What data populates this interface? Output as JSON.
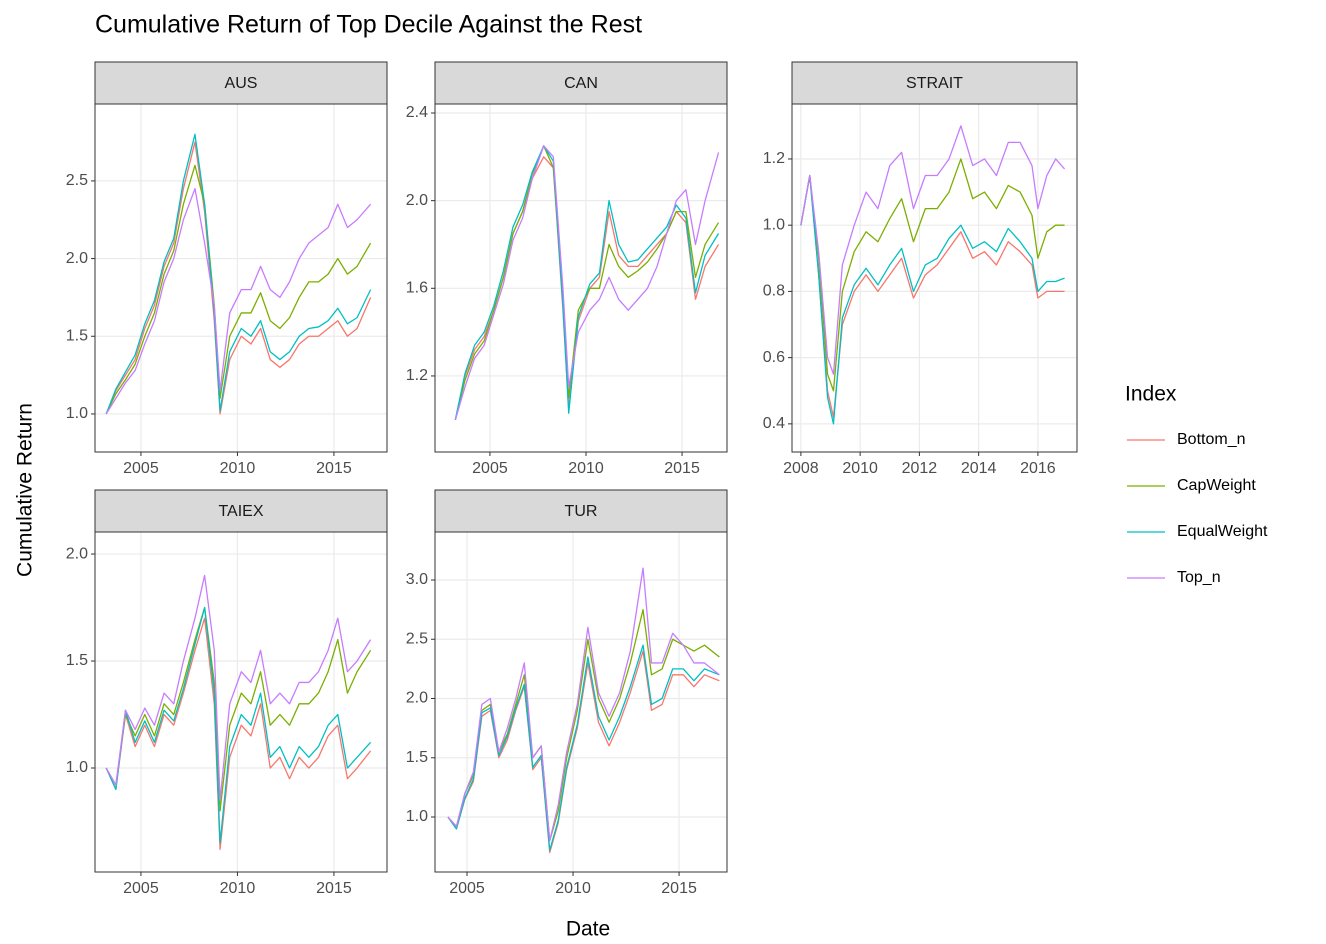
{
  "title": "Cumulative Return of Top Decile Against the Rest",
  "x_label": "Date",
  "y_label": "Cumulative Return",
  "legend_title": "Index",
  "chart_data": [
    {
      "type": "line",
      "title": "AUS",
      "grid": true,
      "xlim": [
        2002.62,
        2017.75
      ],
      "xticks": [
        2005,
        2010,
        2015
      ],
      "ylim": [
        0.755,
        2.995
      ],
      "yticks": [
        {
          "value": 1,
          "label": "1.0"
        },
        1.5,
        {
          "value": 2,
          "label": "2.0"
        },
        2.5
      ],
      "x": [
        2003.2,
        2003.7,
        2004.2,
        2004.7,
        2005.2,
        2005.7,
        2006.2,
        2006.7,
        2007.2,
        2007.8,
        2008.3,
        2008.8,
        2009.1,
        2009.6,
        2010.2,
        2010.7,
        2011.2,
        2011.7,
        2012.2,
        2012.7,
        2013.2,
        2013.7,
        2014.2,
        2014.7,
        2015.2,
        2015.7,
        2016.2,
        2016.9
      ],
      "series": [
        {
          "name": "Bottom_n",
          "color": "#F8766D",
          "values": [
            1.0,
            1.15,
            1.25,
            1.35,
            1.55,
            1.7,
            1.95,
            2.1,
            2.45,
            2.75,
            2.3,
            1.6,
            1.0,
            1.35,
            1.5,
            1.45,
            1.55,
            1.35,
            1.3,
            1.35,
            1.45,
            1.5,
            1.5,
            1.55,
            1.6,
            1.5,
            1.55,
            1.75
          ]
        },
        {
          "name": "CapWeight",
          "color": "#7CAE00",
          "values": [
            1.0,
            1.13,
            1.22,
            1.32,
            1.5,
            1.65,
            1.9,
            2.05,
            2.35,
            2.6,
            2.35,
            1.7,
            1.1,
            1.5,
            1.65,
            1.65,
            1.78,
            1.6,
            1.55,
            1.62,
            1.75,
            1.85,
            1.85,
            1.9,
            2.0,
            1.9,
            1.95,
            2.1
          ]
        },
        {
          "name": "EqualWeight",
          "color": "#00BFC4",
          "values": [
            1.0,
            1.16,
            1.27,
            1.38,
            1.58,
            1.73,
            1.98,
            2.13,
            2.5,
            2.8,
            2.35,
            1.65,
            1.02,
            1.4,
            1.55,
            1.5,
            1.6,
            1.4,
            1.35,
            1.4,
            1.5,
            1.55,
            1.56,
            1.6,
            1.68,
            1.58,
            1.62,
            1.8
          ]
        },
        {
          "name": "Top_n",
          "color": "#C77CFF",
          "values": [
            1.0,
            1.1,
            1.2,
            1.28,
            1.45,
            1.6,
            1.85,
            2.0,
            2.25,
            2.45,
            2.1,
            1.7,
            1.15,
            1.65,
            1.8,
            1.8,
            1.95,
            1.8,
            1.75,
            1.85,
            2.0,
            2.1,
            2.15,
            2.2,
            2.35,
            2.2,
            2.25,
            2.35
          ]
        }
      ]
    },
    {
      "type": "line",
      "title": "CAN",
      "grid": true,
      "xlim": [
        2002.14,
        2017.34
      ],
      "xticks": [
        2005,
        2010,
        2015
      ],
      "ylim": [
        0.853,
        2.441
      ],
      "yticks": [
        1.2,
        1.6,
        {
          "value": 2,
          "label": "2.0"
        },
        2.4
      ],
      "x": [
        2003.2,
        2003.7,
        2004.2,
        2004.7,
        2005.2,
        2005.7,
        2006.2,
        2006.7,
        2007.2,
        2007.8,
        2008.3,
        2008.8,
        2009.1,
        2009.6,
        2010.2,
        2010.7,
        2011.2,
        2011.7,
        2012.2,
        2012.7,
        2013.2,
        2013.7,
        2014.2,
        2014.7,
        2015.2,
        2015.7,
        2016.2,
        2016.9
      ],
      "series": [
        {
          "name": "Bottom_n",
          "color": "#F8766D",
          "values": [
            1.0,
            1.2,
            1.32,
            1.38,
            1.5,
            1.65,
            1.85,
            1.95,
            2.1,
            2.2,
            2.15,
            1.5,
            1.05,
            1.45,
            1.6,
            1.65,
            1.95,
            1.75,
            1.7,
            1.7,
            1.75,
            1.8,
            1.85,
            1.95,
            1.9,
            1.55,
            1.7,
            1.8
          ]
        },
        {
          "name": "CapWeight",
          "color": "#7CAE00",
          "values": [
            1.0,
            1.18,
            1.3,
            1.36,
            1.5,
            1.65,
            1.85,
            1.95,
            2.12,
            2.25,
            2.15,
            1.55,
            1.1,
            1.5,
            1.6,
            1.6,
            1.8,
            1.7,
            1.65,
            1.68,
            1.72,
            1.78,
            1.85,
            1.95,
            1.95,
            1.65,
            1.8,
            1.9
          ]
        },
        {
          "name": "EqualWeight",
          "color": "#00BFC4",
          "values": [
            1.0,
            1.21,
            1.34,
            1.4,
            1.52,
            1.68,
            1.88,
            1.98,
            2.13,
            2.25,
            2.18,
            1.52,
            1.03,
            1.47,
            1.62,
            1.67,
            2.0,
            1.8,
            1.72,
            1.73,
            1.78,
            1.83,
            1.88,
            1.98,
            1.92,
            1.58,
            1.75,
            1.85
          ]
        },
        {
          "name": "Top_n",
          "color": "#C77CFF",
          "values": [
            1.0,
            1.15,
            1.28,
            1.34,
            1.48,
            1.62,
            1.82,
            1.92,
            2.1,
            2.25,
            2.2,
            1.6,
            1.15,
            1.4,
            1.5,
            1.55,
            1.65,
            1.55,
            1.5,
            1.55,
            1.6,
            1.7,
            1.85,
            2.0,
            2.05,
            1.8,
            2.0,
            2.22
          ]
        }
      ]
    },
    {
      "type": "line",
      "title": "STRAIT",
      "grid": true,
      "xlim": [
        2007.7,
        2017.32
      ],
      "xticks": [
        2008,
        2010,
        2012,
        2014,
        2016
      ],
      "ylim": [
        0.315,
        1.366
      ],
      "yticks": [
        0.4,
        0.6,
        0.8,
        {
          "value": 1,
          "label": "1.0"
        },
        1.2
      ],
      "x": [
        2008.0,
        2008.3,
        2008.6,
        2008.9,
        2009.1,
        2009.4,
        2009.8,
        2010.2,
        2010.6,
        2011.0,
        2011.4,
        2011.8,
        2012.2,
        2012.6,
        2013.0,
        2013.4,
        2013.8,
        2014.2,
        2014.6,
        2015.0,
        2015.4,
        2015.8,
        2016.0,
        2016.3,
        2016.6,
        2016.9
      ],
      "series": [
        {
          "name": "Bottom_n",
          "color": "#F8766D",
          "values": [
            1.0,
            1.15,
            0.85,
            0.5,
            0.42,
            0.7,
            0.8,
            0.85,
            0.8,
            0.85,
            0.9,
            0.78,
            0.85,
            0.88,
            0.93,
            0.98,
            0.9,
            0.92,
            0.88,
            0.95,
            0.92,
            0.88,
            0.78,
            0.8,
            0.8,
            0.8
          ]
        },
        {
          "name": "CapWeight",
          "color": "#7CAE00",
          "values": [
            1.0,
            1.15,
            0.9,
            0.55,
            0.5,
            0.8,
            0.92,
            0.98,
            0.95,
            1.02,
            1.08,
            0.95,
            1.05,
            1.05,
            1.1,
            1.2,
            1.08,
            1.1,
            1.05,
            1.12,
            1.1,
            1.03,
            0.9,
            0.98,
            1.0,
            1.0
          ]
        },
        {
          "name": "EqualWeight",
          "color": "#00BFC4",
          "values": [
            1.0,
            1.15,
            0.85,
            0.48,
            0.4,
            0.72,
            0.82,
            0.87,
            0.82,
            0.88,
            0.93,
            0.8,
            0.88,
            0.9,
            0.96,
            1.0,
            0.93,
            0.95,
            0.92,
            0.99,
            0.95,
            0.9,
            0.8,
            0.83,
            0.83,
            0.84
          ]
        },
        {
          "name": "Top_n",
          "color": "#C77CFF",
          "values": [
            1.0,
            1.15,
            0.92,
            0.6,
            0.55,
            0.88,
            1.0,
            1.1,
            1.05,
            1.18,
            1.22,
            1.05,
            1.15,
            1.15,
            1.2,
            1.3,
            1.18,
            1.2,
            1.15,
            1.25,
            1.25,
            1.18,
            1.05,
            1.15,
            1.2,
            1.17
          ]
        }
      ]
    },
    {
      "type": "line",
      "title": "TAIEX",
      "grid": true,
      "xlim": [
        2002.62,
        2017.75
      ],
      "xticks": [
        2005,
        2010,
        2015
      ],
      "ylim": [
        0.514,
        2.103
      ],
      "yticks": [
        {
          "value": 1,
          "label": "1.0"
        },
        1.5,
        {
          "value": 2,
          "label": "2.0"
        }
      ],
      "x": [
        2003.2,
        2003.7,
        2004.2,
        2004.7,
        2005.2,
        2005.7,
        2006.2,
        2006.7,
        2007.2,
        2007.8,
        2008.3,
        2008.8,
        2009.1,
        2009.6,
        2010.2,
        2010.7,
        2011.2,
        2011.7,
        2012.2,
        2012.7,
        2013.2,
        2013.7,
        2014.2,
        2014.7,
        2015.2,
        2015.7,
        2016.2,
        2016.9
      ],
      "series": [
        {
          "name": "Bottom_n",
          "color": "#F8766D",
          "values": [
            1.0,
            0.9,
            1.25,
            1.1,
            1.2,
            1.1,
            1.25,
            1.2,
            1.35,
            1.55,
            1.7,
            1.3,
            0.62,
            1.05,
            1.2,
            1.15,
            1.3,
            1.0,
            1.05,
            0.95,
            1.05,
            1.0,
            1.05,
            1.15,
            1.2,
            0.95,
            1.0,
            1.08
          ]
        },
        {
          "name": "CapWeight",
          "color": "#7CAE00",
          "values": [
            1.0,
            0.92,
            1.25,
            1.15,
            1.25,
            1.15,
            1.3,
            1.25,
            1.4,
            1.6,
            1.75,
            1.4,
            0.8,
            1.2,
            1.35,
            1.3,
            1.45,
            1.2,
            1.25,
            1.2,
            1.3,
            1.3,
            1.35,
            1.45,
            1.6,
            1.35,
            1.45,
            1.55
          ]
        },
        {
          "name": "EqualWeight",
          "color": "#00BFC4",
          "values": [
            1.0,
            0.9,
            1.27,
            1.12,
            1.22,
            1.12,
            1.27,
            1.22,
            1.37,
            1.58,
            1.75,
            1.35,
            0.65,
            1.1,
            1.25,
            1.2,
            1.35,
            1.05,
            1.1,
            1.0,
            1.1,
            1.05,
            1.1,
            1.2,
            1.25,
            1.0,
            1.05,
            1.12
          ]
        },
        {
          "name": "Top_n",
          "color": "#C77CFF",
          "values": [
            1.0,
            0.92,
            1.27,
            1.18,
            1.28,
            1.2,
            1.35,
            1.3,
            1.5,
            1.7,
            1.9,
            1.55,
            0.85,
            1.3,
            1.45,
            1.4,
            1.55,
            1.3,
            1.35,
            1.3,
            1.4,
            1.4,
            1.45,
            1.55,
            1.7,
            1.45,
            1.5,
            1.6
          ]
        }
      ]
    },
    {
      "type": "line",
      "title": "TUR",
      "grid": true,
      "xlim": [
        2003.49,
        2017.26
      ],
      "xticks": [
        2005,
        2010,
        2015
      ],
      "ylim": [
        0.536,
        3.405
      ],
      "yticks": [
        {
          "value": 1,
          "label": "1.0"
        },
        1.5,
        {
          "value": 2,
          "label": "2.0"
        },
        2.5,
        {
          "value": 3,
          "label": "3.0"
        }
      ],
      "x": [
        2004.1,
        2004.5,
        2004.9,
        2005.3,
        2005.7,
        2006.1,
        2006.5,
        2006.9,
        2007.3,
        2007.7,
        2008.1,
        2008.5,
        2008.9,
        2009.3,
        2009.7,
        2010.2,
        2010.7,
        2011.2,
        2011.7,
        2012.2,
        2012.7,
        2013.3,
        2013.7,
        2014.2,
        2014.7,
        2015.2,
        2015.7,
        2016.2,
        2016.9
      ],
      "series": [
        {
          "name": "Bottom_n",
          "color": "#F8766D",
          "values": [
            1.0,
            0.9,
            1.15,
            1.3,
            1.85,
            1.9,
            1.5,
            1.65,
            1.9,
            2.1,
            1.4,
            1.5,
            0.7,
            0.95,
            1.4,
            1.75,
            2.3,
            1.8,
            1.6,
            1.8,
            2.05,
            2.4,
            1.9,
            1.95,
            2.2,
            2.2,
            2.1,
            2.2,
            2.15
          ]
        },
        {
          "name": "CapWeight",
          "color": "#7CAE00",
          "values": [
            1.0,
            0.92,
            1.2,
            1.35,
            1.9,
            1.95,
            1.55,
            1.7,
            1.95,
            2.2,
            1.5,
            1.6,
            0.8,
            1.05,
            1.5,
            1.9,
            2.5,
            2.0,
            1.8,
            2.0,
            2.3,
            2.75,
            2.2,
            2.25,
            2.5,
            2.45,
            2.4,
            2.45,
            2.35
          ]
        },
        {
          "name": "EqualWeight",
          "color": "#00BFC4",
          "values": [
            1.0,
            0.9,
            1.16,
            1.32,
            1.88,
            1.92,
            1.52,
            1.68,
            1.92,
            2.12,
            1.42,
            1.52,
            0.72,
            0.97,
            1.42,
            1.78,
            2.35,
            1.85,
            1.65,
            1.85,
            2.1,
            2.45,
            1.95,
            2.0,
            2.25,
            2.25,
            2.15,
            2.25,
            2.2
          ]
        },
        {
          "name": "Top_n",
          "color": "#C77CFF",
          "values": [
            1.0,
            0.92,
            1.2,
            1.38,
            1.95,
            2.0,
            1.55,
            1.75,
            2.0,
            2.3,
            1.5,
            1.6,
            0.8,
            1.1,
            1.55,
            1.95,
            2.6,
            2.05,
            1.85,
            2.05,
            2.4,
            3.1,
            2.3,
            2.3,
            2.55,
            2.45,
            2.3,
            2.3,
            2.2
          ]
        }
      ]
    }
  ]
}
